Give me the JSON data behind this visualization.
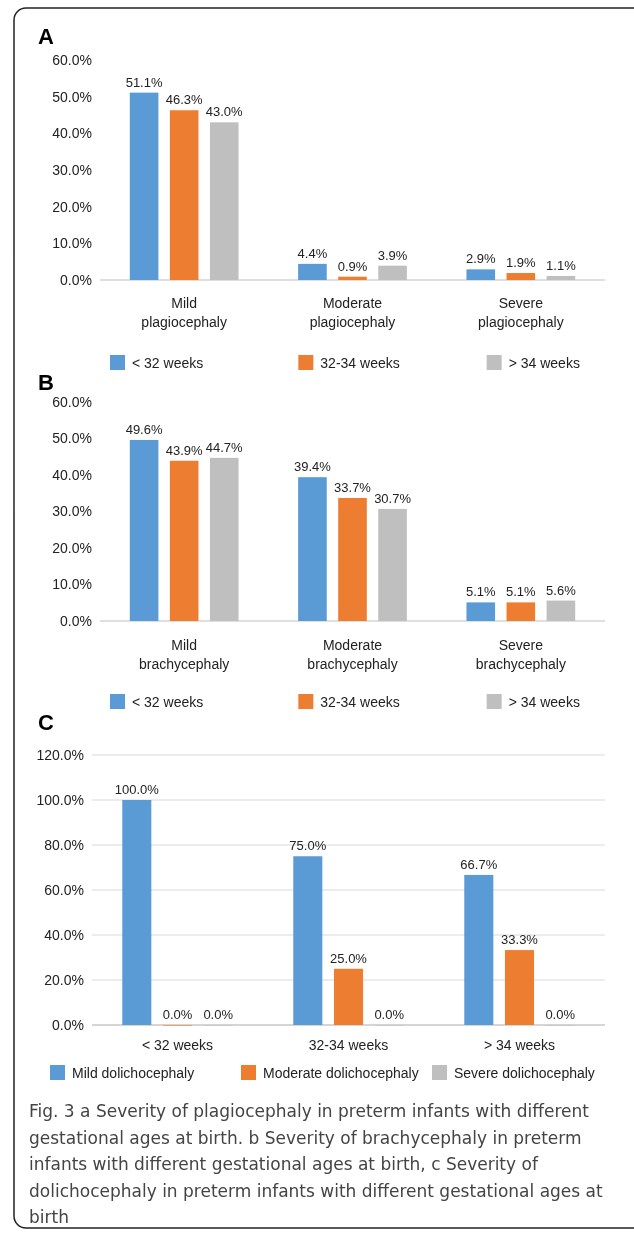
{
  "chart_data": [
    {
      "type": "bar",
      "title": "A",
      "categories": [
        "Mild plagiocephaly",
        "Moderate plagiocephaly",
        "Severe plagiocephaly"
      ],
      "series": [
        {
          "name": "< 32 weeks",
          "color": "#5b9bd5",
          "values": [
            51.1,
            4.4,
            2.9
          ],
          "value_labels": [
            "51.1%",
            "4.4%",
            "2.9%"
          ]
        },
        {
          "name": "32-34 weeks",
          "color": "#ed7d31",
          "values": [
            46.3,
            0.9,
            1.9
          ],
          "value_labels": [
            "46.3%",
            "0.9%",
            "1.9%"
          ]
        },
        {
          "name": "> 34 weeks",
          "color": "#bfbfbf",
          "values": [
            43.0,
            3.9,
            1.1
          ],
          "value_labels": [
            "43.0%",
            "3.9%",
            "1.1%"
          ]
        }
      ],
      "ylim": [
        0,
        60
      ],
      "yticks": [
        {
          "value": 0,
          "label": "0.0%"
        },
        {
          "value": 10,
          "label": "10.0%"
        },
        {
          "value": 20,
          "label": "20.0%"
        },
        {
          "value": 30,
          "label": "30.0%"
        },
        {
          "value": 40,
          "label": "40.0%"
        },
        {
          "value": 50,
          "label": "50.0%"
        },
        {
          "value": 60,
          "label": "60.0%"
        }
      ],
      "grid": false,
      "legend": "bottom"
    },
    {
      "type": "bar",
      "title": "B",
      "categories": [
        "Mild brachycephaly",
        "Moderate brachycephaly",
        "Severe brachycephaly"
      ],
      "series": [
        {
          "name": "< 32 weeks",
          "color": "#5b9bd5",
          "values": [
            49.6,
            39.4,
            5.1
          ],
          "value_labels": [
            "49.6%",
            "39.4%",
            "5.1%"
          ]
        },
        {
          "name": "32-34 weeks",
          "color": "#ed7d31",
          "values": [
            43.9,
            33.7,
            5.1
          ],
          "value_labels": [
            "43.9%",
            "33.7%",
            "5.1%"
          ]
        },
        {
          "name": "> 34 weeks",
          "color": "#bfbfbf",
          "values": [
            44.7,
            30.7,
            5.6
          ],
          "value_labels": [
            "44.7%",
            "30.7%",
            "5.6%"
          ]
        }
      ],
      "ylim": [
        0,
        60
      ],
      "yticks": [
        {
          "value": 0,
          "label": "0.0%"
        },
        {
          "value": 10,
          "label": "10.0%"
        },
        {
          "value": 20,
          "label": "20.0%"
        },
        {
          "value": 30,
          "label": "30.0%"
        },
        {
          "value": 40,
          "label": "40.0%"
        },
        {
          "value": 50,
          "label": "50.0%"
        },
        {
          "value": 60,
          "label": "60.0%"
        }
      ],
      "grid": false,
      "legend": "bottom"
    },
    {
      "type": "bar",
      "title": "C",
      "categories": [
        "< 32 weeks",
        "32-34 weeks",
        "> 34 weeks"
      ],
      "series": [
        {
          "name": "Mild dolichocephaly",
          "color": "#5b9bd5",
          "values": [
            100.0,
            75.0,
            66.7
          ],
          "value_labels": [
            "100.0%",
            "75.0%",
            "66.7%"
          ]
        },
        {
          "name": "Moderate dolichocephaly",
          "color": "#ed7d31",
          "values": [
            0.0,
            25.0,
            33.3
          ],
          "value_labels": [
            "0.0%",
            "25.0%",
            "33.3%"
          ]
        },
        {
          "name": "Severe dolichocephaly",
          "color": "#bfbfbf",
          "values": [
            0.0,
            0.0,
            0.0
          ],
          "value_labels": [
            "0.0%",
            "0.0%",
            "0.0%"
          ]
        }
      ],
      "ylim": [
        0,
        120
      ],
      "yticks": [
        {
          "value": 0,
          "label": "0.0%"
        },
        {
          "value": 20,
          "label": "20.0%"
        },
        {
          "value": 40,
          "label": "40.0%"
        },
        {
          "value": 60,
          "label": "60.0%"
        },
        {
          "value": 80,
          "label": "80.0%"
        },
        {
          "value": 100,
          "label": "100.0%"
        },
        {
          "value": 120,
          "label": "120.0%"
        }
      ],
      "grid": "y",
      "legend": "bottom",
      "annotations": [
        "Fig. 3 a Severity of plagiocephaly in preterm infants with different gestational ages at birth. b Severity of brachycephaly in preterm infants with different gestational ages at birth, c Severity of dolichocephaly in preterm infants with different gestational ages at birth"
      ]
    }
  ]
}
